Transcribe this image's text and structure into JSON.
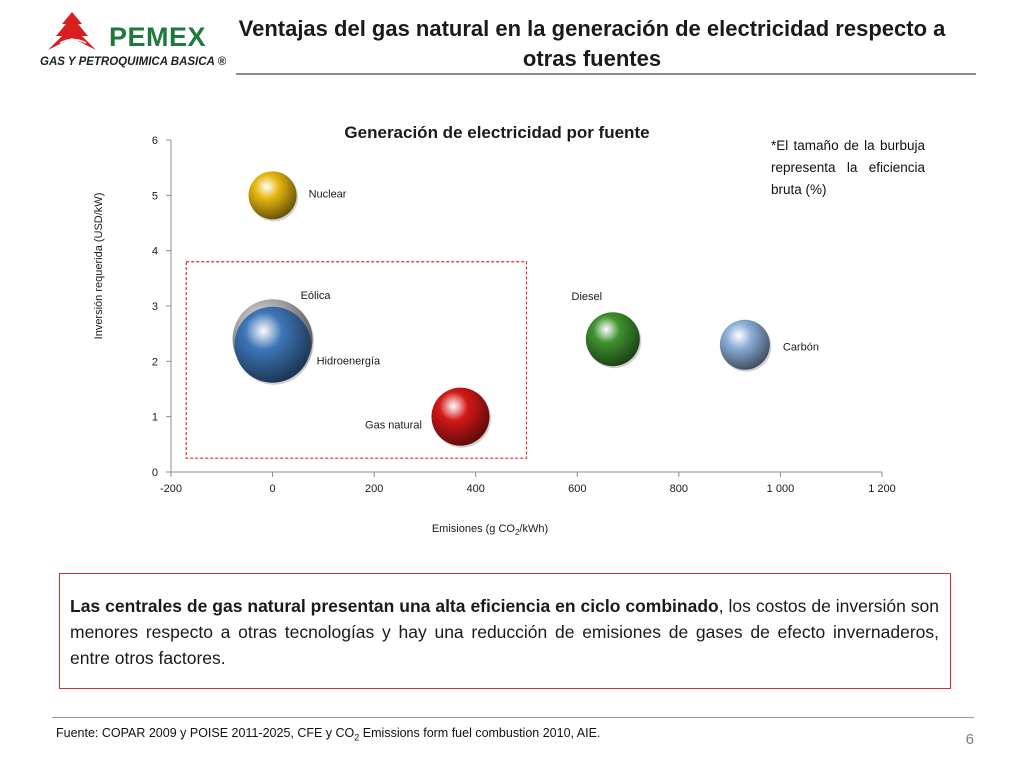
{
  "header": {
    "logo_name": "PEMEX",
    "logo_subtitle": "GAS Y PETROQUIMICA BASICA ®",
    "title": "Ventajas del gas natural en la generación de electricidad respecto a otras fuentes"
  },
  "note": "*El tamaño de la burbuja representa la eficiencia bruta (%)",
  "callout": {
    "bold": "Las centrales de gas natural presentan una alta eficiencia en ciclo combinado",
    "rest": ", los costos de inversión son menores respecto a otras tecnologías y hay una reducción de emisiones de gases de efecto invernaderos, entre otros factores."
  },
  "footer": {
    "source_before": "Fuente: COPAR 2009 y POISE 2011-2025, CFE y CO",
    "source_sub": "2",
    "source_after": " Emissions form fuel combustion 2010, AIE.",
    "page": "6"
  },
  "chart_data": {
    "type": "bubble",
    "title": "Generación de electricidad por fuente",
    "xlabel": "Emisiones (g CO2/kWh)",
    "ylabel": "Inversión requerida (USD/kW)",
    "xlim": [
      -200,
      1200
    ],
    "ylim": [
      0,
      6
    ],
    "xticks": [
      -200,
      0,
      200,
      400,
      600,
      800,
      1000,
      1200
    ],
    "xtick_labels": [
      "-200",
      "0",
      "200",
      "400",
      "600",
      "800",
      "1 000",
      "1 200"
    ],
    "yticks": [
      0,
      1,
      2,
      3,
      4,
      5,
      6
    ],
    "ytick_labels": [
      "0",
      "1",
      "2",
      "3",
      "4",
      "5",
      "6"
    ],
    "grid": false,
    "highlight_region": {
      "x": [
        -170,
        500
      ],
      "y": [
        0.25,
        3.8
      ]
    },
    "series": [
      {
        "name": "Nuclear",
        "x": 0,
        "y": 5.0,
        "size": 24,
        "color": "#e8b810"
      },
      {
        "name": "Eólica",
        "x": 0,
        "y": 2.4,
        "size": 40,
        "color": "#b5b5b5"
      },
      {
        "name": "Hidroenergía",
        "x": 0,
        "y": 2.3,
        "size": 38,
        "color": "#3e76b8"
      },
      {
        "name": "Gas natural",
        "x": 370,
        "y": 1.0,
        "size": 29,
        "color": "#d41818"
      },
      {
        "name": "Diesel",
        "x": 670,
        "y": 2.4,
        "size": 27,
        "color": "#3f922f"
      },
      {
        "name": "Carbón",
        "x": 930,
        "y": 2.3,
        "size": 25,
        "color": "#8eb0da"
      }
    ]
  }
}
